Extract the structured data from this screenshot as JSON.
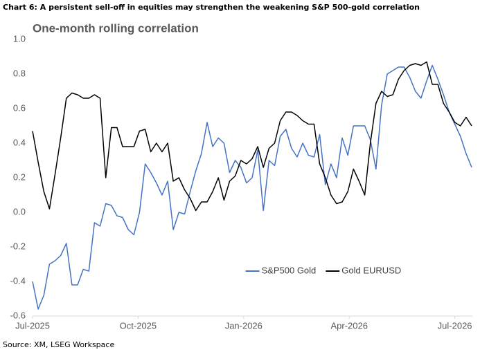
{
  "chart_data": {
    "type": "line",
    "title": "Chart 6: A persistent sell-off in equities may strengthen the weakening S&P 500-gold correlation",
    "subtitle": "One-month rolling correlation",
    "source": "Source: XM, LSEG Workspace",
    "x": [
      0,
      0.16,
      0.32,
      0.48,
      0.64,
      0.8,
      0.96,
      1.12,
      1.28,
      1.44,
      1.6,
      1.76,
      1.92,
      2.08,
      2.24,
      2.4,
      2.56,
      2.72,
      2.88,
      3.04,
      3.2,
      3.36,
      3.52,
      3.68,
      3.84,
      4,
      4.16,
      4.32,
      4.48,
      4.64,
      4.8,
      4.96,
      5.12,
      5.28,
      5.44,
      5.6,
      5.76,
      5.92,
      6.08,
      6.24,
      6.4,
      6.56,
      6.72,
      6.88,
      7.04,
      7.2,
      7.36,
      7.52,
      7.68,
      7.84,
      8,
      8.16,
      8.32,
      8.48,
      8.64,
      8.8,
      8.96,
      9.12,
      9.28,
      9.44,
      9.6,
      9.76,
      9.92,
      10.08,
      10.24,
      10.4,
      10.56,
      10.72,
      10.88,
      11.04,
      11.2,
      11.36,
      11.52,
      11.68,
      11.84,
      12,
      12.16,
      12.32,
      12.48
    ],
    "series": [
      {
        "name": "S&P500 Gold",
        "color": "#4472c4",
        "values": [
          -0.4,
          -0.56,
          -0.48,
          -0.3,
          -0.28,
          -0.25,
          -0.18,
          -0.42,
          -0.42,
          -0.33,
          -0.34,
          -0.06,
          -0.08,
          0.05,
          0.04,
          -0.02,
          -0.03,
          -0.1,
          -0.13,
          0,
          0.28,
          0.23,
          0.17,
          0.1,
          0.18,
          -0.1,
          0,
          -0.01,
          0.12,
          0.24,
          0.34,
          0.52,
          0.38,
          0.43,
          0.4,
          0.23,
          0.3,
          0.26,
          0.17,
          0.2,
          0.36,
          0.01,
          0.3,
          0.27,
          0.44,
          0.48,
          0.37,
          0.32,
          0.4,
          0.33,
          0.32,
          0.45,
          0.16,
          0.28,
          0.2,
          0.43,
          0.33,
          0.5,
          0.5,
          0.5,
          0.42,
          0.25,
          0.62,
          0.8,
          0.82,
          0.84,
          0.84,
          0.78,
          0.7,
          0.66,
          0.76,
          0.85,
          0.77,
          0.68,
          0.58,
          0.51,
          0.44,
          0.34,
          0.26
        ]
      },
      {
        "name": "Gold EURUSD",
        "color": "#000000",
        "values": [
          0.47,
          0.29,
          0.12,
          0.02,
          0.22,
          0.43,
          0.66,
          0.69,
          0.68,
          0.66,
          0.66,
          0.68,
          0.66,
          0.2,
          0.49,
          0.49,
          0.38,
          0.38,
          0.38,
          0.47,
          0.48,
          0.35,
          0.4,
          0.35,
          0.4,
          0.18,
          0.2,
          0.13,
          0.08,
          0.01,
          0.06,
          0.06,
          0.12,
          0.2,
          0.07,
          0.18,
          0.21,
          0.3,
          0.28,
          0.31,
          0.38,
          0.26,
          0.37,
          0.4,
          0.53,
          0.58,
          0.58,
          0.56,
          0.53,
          0.51,
          0.51,
          0.28,
          0.2,
          0.1,
          0.05,
          0.06,
          0.12,
          0.25,
          0.18,
          0.1,
          0.4,
          0.63,
          0.7,
          0.67,
          0.68,
          0.77,
          0.82,
          0.85,
          0.86,
          0.85,
          0.87,
          0.74,
          0.74,
          0.63,
          0.58,
          0.52,
          0.5,
          0.55,
          0.5
        ]
      }
    ],
    "xlim": [
      0,
      12.5
    ],
    "xticks": [
      {
        "value": 0,
        "label": "Jul-2025"
      },
      {
        "value": 3,
        "label": "Oct-2025"
      },
      {
        "value": 6,
        "label": "Jan-2026"
      },
      {
        "value": 9,
        "label": "Apr-2026"
      },
      {
        "value": 12,
        "label": "Jul-2026"
      }
    ],
    "ylim": [
      -0.6,
      1
    ],
    "yticks": [
      -0.6,
      -0.4,
      -0.2,
      {
        "value": 0,
        "label": "0.0"
      },
      0.2,
      0.4,
      0.6,
      0.8,
      {
        "value": 1,
        "label": "1.0"
      }
    ],
    "grid": false,
    "legend": "lower center"
  }
}
